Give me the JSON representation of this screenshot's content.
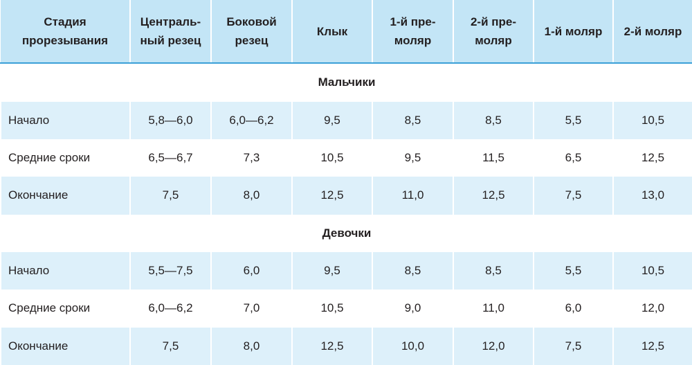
{
  "table": {
    "header": [
      [
        "Стадия",
        "прорезывания"
      ],
      [
        "Централь-",
        "ный резец"
      ],
      [
        "Боковой",
        "резец"
      ],
      [
        "Клык"
      ],
      [
        "1-й пре-",
        "моляр"
      ],
      [
        "2-й пре-",
        "моляр"
      ],
      [
        "1-й моляр"
      ],
      [
        "2-й моляр"
      ]
    ],
    "sections": [
      {
        "title": "Мальчики",
        "rows": [
          [
            "Начало",
            "5,8—6,0",
            "6,0—6,2",
            "9,5",
            "8,5",
            "8,5",
            "5,5",
            "10,5"
          ],
          [
            "Средние сроки",
            "6,5—6,7",
            "7,3",
            "10,5",
            "9,5",
            "11,5",
            "6,5",
            "12,5"
          ],
          [
            "Окончание",
            "7,5",
            "8,0",
            "12,5",
            "11,0",
            "12,5",
            "7,5",
            "13,0"
          ]
        ]
      },
      {
        "title": "Девочки",
        "rows": [
          [
            "Начало",
            "5,5—7,5",
            "6,0",
            "9,5",
            "8,5",
            "8,5",
            "5,5",
            "10,5"
          ],
          [
            "Средние сроки",
            "6,0—6,2",
            "7,0",
            "10,5",
            "9,0",
            "11,0",
            "6,0",
            "12,0"
          ],
          [
            "Окончание",
            "7,5",
            "8,0",
            "12,5",
            "10,0",
            "12,0",
            "7,5",
            "12,5"
          ]
        ]
      }
    ]
  }
}
